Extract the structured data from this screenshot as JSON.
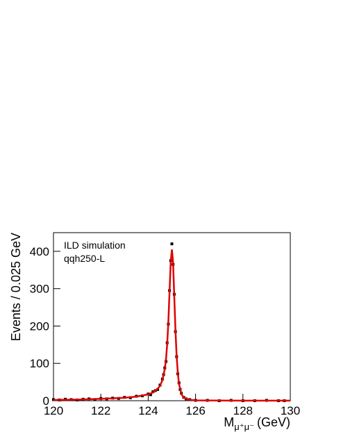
{
  "chart_data": {
    "type": "scatter",
    "annotations": [
      "ILD simulation",
      "qqh250-L"
    ],
    "y_label": "Events / 0.025 GeV",
    "x_label": "M",
    "x_label_subscript": "μ⁺μ⁻",
    "x_label_unit": "(GeV)",
    "xlim": [
      120,
      130
    ],
    "xticks": [
      120,
      122,
      124,
      126,
      128,
      130
    ],
    "ylim": [
      0,
      450
    ],
    "yticks": [
      0,
      100,
      200,
      300,
      400
    ],
    "grid": false,
    "series": [
      {
        "type": "scatter",
        "color": "#000000",
        "x": [
          120,
          120.25,
          120.5,
          120.75,
          121,
          121.25,
          121.5,
          121.75,
          122,
          122.25,
          122.5,
          122.75,
          123,
          123.25,
          123.5,
          123.75,
          124,
          124.1,
          124.2,
          124.3,
          124.4,
          124.5,
          124.6,
          124.65,
          124.7,
          124.75,
          124.8,
          124.85,
          124.9,
          124.95,
          125,
          125.05,
          125.1,
          125.15,
          125.2,
          125.25,
          125.3,
          125.35,
          125.4,
          125.5,
          125.6,
          125.75,
          126,
          126.5,
          127,
          127.5,
          128,
          128.5,
          129,
          129.5,
          129.75
        ],
        "values": [
          3,
          2,
          4,
          3,
          2,
          4,
          5,
          3,
          6,
          5,
          7,
          6,
          9,
          8,
          12,
          13,
          18,
          16,
          24,
          27,
          30,
          42,
          58,
          70,
          88,
          105,
          155,
          205,
          295,
          375,
          420,
          365,
          285,
          185,
          118,
          72,
          48,
          30,
          20,
          9,
          5,
          3,
          1,
          1,
          0,
          1,
          0,
          0,
          1,
          0,
          0
        ]
      },
      {
        "type": "line",
        "color": "#e00000",
        "x": [
          120,
          121,
          122,
          123,
          123.5,
          124,
          124.2,
          124.4,
          124.5,
          124.6,
          124.7,
          124.75,
          124.8,
          124.85,
          124.9,
          124.95,
          125,
          125.05,
          125.1,
          125.15,
          125.2,
          125.25,
          125.3,
          125.4,
          125.5,
          125.7,
          126,
          127,
          128,
          130
        ],
        "values": [
          2,
          3,
          5,
          8,
          11,
          17,
          22,
          32,
          40,
          55,
          85,
          110,
          150,
          210,
          290,
          370,
          405,
          370,
          280,
          190,
          120,
          75,
          45,
          18,
          8,
          3,
          1,
          0.5,
          0.3,
          0.2
        ]
      }
    ]
  }
}
